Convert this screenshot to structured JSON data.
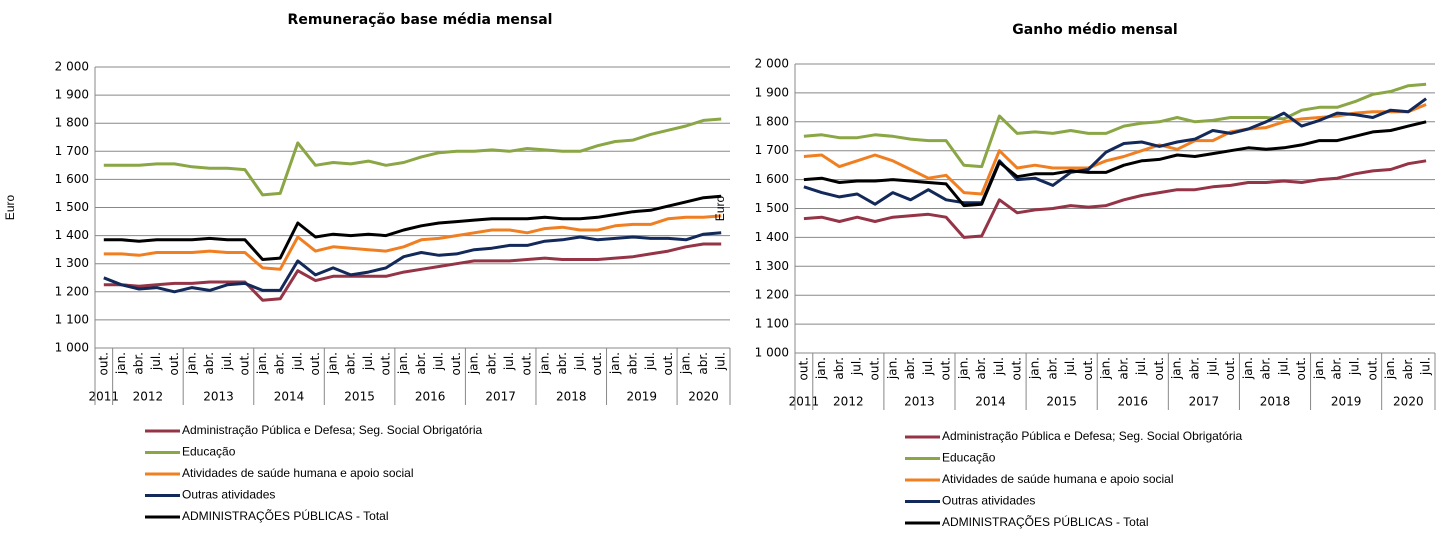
{
  "chart_data": [
    {
      "type": "line",
      "title": "Remuneração base média mensal",
      "y_label": "Euro",
      "categories": [
        "out.",
        "jan.",
        "abr.",
        "jul.",
        "out.",
        "jan.",
        "abr.",
        "jul.",
        "out.",
        "jan.",
        "abr.",
        "jul.",
        "out.",
        "jan.",
        "abr.",
        "jul.",
        "out.",
        "jan.",
        "abr.",
        "jul.",
        "out.",
        "jan.",
        "abr.",
        "jul.",
        "out.",
        "jan.",
        "abr.",
        "jul.",
        "out.",
        "jan.",
        "abr.",
        "jul.",
        "out.",
        "jan.",
        "abr.",
        "jul."
      ],
      "years": [
        "2011",
        "2012",
        "2013",
        "2014",
        "2015",
        "2016",
        "2017",
        "2018",
        "2019",
        "2020"
      ],
      "ylim": [
        1000,
        2000
      ],
      "yticks": [
        {
          "value": 1000,
          "label": "1 000"
        },
        {
          "value": 1100,
          "label": "1 100"
        },
        {
          "value": 1200,
          "label": "1 200"
        },
        {
          "value": 1300,
          "label": "1 300"
        },
        {
          "value": 1400,
          "label": "1 400"
        },
        {
          "value": 1500,
          "label": "1 500"
        },
        {
          "value": 1600,
          "label": "1 600"
        },
        {
          "value": 1700,
          "label": "1 700"
        },
        {
          "value": 1800,
          "label": "1 800"
        },
        {
          "value": 1900,
          "label": "1 900"
        },
        {
          "value": 2000,
          "label": "2 000"
        }
      ],
      "grid": true,
      "series": [
        {
          "name": "Administração Pública e Defesa; Seg. Social Obrigatória",
          "color": "#953446",
          "values": [
            1225,
            1225,
            1220,
            1225,
            1230,
            1230,
            1235,
            1235,
            1235,
            1170,
            1175,
            1275,
            1240,
            1255,
            1255,
            1255,
            1255,
            1270,
            1280,
            1290,
            1300,
            1310,
            1310,
            1310,
            1315,
            1320,
            1315,
            1315,
            1315,
            1320,
            1325,
            1335,
            1345,
            1360,
            1370,
            1370
          ]
        },
        {
          "name": "Educação",
          "color": "#8aa645",
          "values": [
            1650,
            1650,
            1650,
            1655,
            1655,
            1645,
            1640,
            1640,
            1635,
            1545,
            1550,
            1730,
            1650,
            1660,
            1655,
            1665,
            1650,
            1660,
            1680,
            1695,
            1700,
            1700,
            1705,
            1700,
            1710,
            1705,
            1700,
            1700,
            1720,
            1735,
            1740,
            1760,
            1775,
            1790,
            1810,
            1815
          ]
        },
        {
          "name": "Atividades de saúde humana e apoio social",
          "color": "#f07f22",
          "values": [
            1335,
            1335,
            1330,
            1340,
            1340,
            1340,
            1345,
            1340,
            1340,
            1285,
            1280,
            1395,
            1345,
            1360,
            1355,
            1350,
            1345,
            1360,
            1385,
            1390,
            1400,
            1410,
            1420,
            1420,
            1410,
            1425,
            1430,
            1420,
            1420,
            1435,
            1440,
            1440,
            1460,
            1465,
            1465,
            1470
          ]
        },
        {
          "name": "Outras atividades",
          "color": "#13295a",
          "values": [
            1250,
            1225,
            1210,
            1215,
            1200,
            1215,
            1205,
            1225,
            1230,
            1205,
            1205,
            1310,
            1260,
            1285,
            1260,
            1270,
            1285,
            1325,
            1340,
            1330,
            1335,
            1350,
            1355,
            1365,
            1365,
            1380,
            1385,
            1395,
            1385,
            1390,
            1395,
            1390,
            1390,
            1385,
            1405,
            1410
          ]
        },
        {
          "name": "ADMINISTRAÇÕES PÚBLICAS - Total",
          "color": "#000000",
          "values": [
            1385,
            1385,
            1380,
            1385,
            1385,
            1385,
            1390,
            1385,
            1385,
            1315,
            1320,
            1445,
            1395,
            1405,
            1400,
            1405,
            1400,
            1420,
            1435,
            1445,
            1450,
            1455,
            1460,
            1460,
            1460,
            1465,
            1460,
            1460,
            1465,
            1475,
            1485,
            1490,
            1505,
            1520,
            1535,
            1540
          ]
        }
      ]
    },
    {
      "type": "line",
      "title": "Ganho médio mensal",
      "y_label": "Euro",
      "categories": [
        "out.",
        "jan.",
        "abr.",
        "jul.",
        "out.",
        "jan.",
        "abr.",
        "jul.",
        "out.",
        "jan.",
        "abr.",
        "jul.",
        "out.",
        "jan.",
        "abr.",
        "jul.",
        "out.",
        "jan.",
        "abr.",
        "jul.",
        "out.",
        "jan.",
        "abr.",
        "jul.",
        "out.",
        "jan.",
        "abr.",
        "jul.",
        "out.",
        "jan.",
        "abr.",
        "jul.",
        "out.",
        "jan.",
        "abr.",
        "jul."
      ],
      "years": [
        "2011",
        "2012",
        "2013",
        "2014",
        "2015",
        "2016",
        "2017",
        "2018",
        "2019",
        "2020"
      ],
      "ylim": [
        1000,
        2000
      ],
      "yticks": [
        {
          "value": 1000,
          "label": "1 000"
        },
        {
          "value": 1100,
          "label": "1 100"
        },
        {
          "value": 1200,
          "label": "1 200"
        },
        {
          "value": 1300,
          "label": "1 300"
        },
        {
          "value": 1400,
          "label": "1 400"
        },
        {
          "value": 1500,
          "label": "1 500"
        },
        {
          "value": 1600,
          "label": "1 600"
        },
        {
          "value": 1700,
          "label": "1 700"
        },
        {
          "value": 1800,
          "label": "1 800"
        },
        {
          "value": 1900,
          "label": "1 900"
        },
        {
          "value": 2000,
          "label": "2 000"
        }
      ],
      "grid": true,
      "series": [
        {
          "name": "Administração Pública e Defesa; Seg. Social Obrigatória",
          "color": "#953446",
          "values": [
            1465,
            1470,
            1455,
            1470,
            1455,
            1470,
            1475,
            1480,
            1470,
            1400,
            1405,
            1530,
            1485,
            1495,
            1500,
            1510,
            1505,
            1510,
            1530,
            1545,
            1555,
            1565,
            1565,
            1575,
            1580,
            1590,
            1590,
            1595,
            1590,
            1600,
            1605,
            1620,
            1630,
            1635,
            1655,
            1665
          ]
        },
        {
          "name": "Educação",
          "color": "#8aa645",
          "values": [
            1750,
            1755,
            1745,
            1745,
            1755,
            1750,
            1740,
            1735,
            1735,
            1650,
            1645,
            1820,
            1760,
            1765,
            1760,
            1770,
            1760,
            1760,
            1785,
            1795,
            1800,
            1815,
            1800,
            1805,
            1815,
            1815,
            1815,
            1810,
            1840,
            1850,
            1850,
            1870,
            1895,
            1905,
            1925,
            1930
          ]
        },
        {
          "name": "Atividades de saúde humana e apoio social",
          "color": "#f07f22",
          "values": [
            1680,
            1685,
            1645,
            1665,
            1685,
            1665,
            1635,
            1605,
            1615,
            1555,
            1550,
            1700,
            1640,
            1650,
            1640,
            1640,
            1640,
            1665,
            1680,
            1700,
            1720,
            1705,
            1735,
            1735,
            1765,
            1775,
            1780,
            1800,
            1810,
            1815,
            1820,
            1830,
            1835,
            1835,
            1835,
            1860
          ]
        },
        {
          "name": "Outras atividades",
          "color": "#13295a",
          "values": [
            1575,
            1555,
            1540,
            1550,
            1515,
            1555,
            1530,
            1565,
            1530,
            1520,
            1520,
            1665,
            1600,
            1605,
            1580,
            1625,
            1635,
            1695,
            1725,
            1730,
            1715,
            1730,
            1740,
            1770,
            1760,
            1775,
            1800,
            1830,
            1785,
            1805,
            1830,
            1825,
            1815,
            1840,
            1835,
            1880
          ]
        },
        {
          "name": "ADMINISTRAÇÕES PÚBLICAS - Total",
          "color": "#000000",
          "values": [
            1600,
            1605,
            1590,
            1595,
            1595,
            1600,
            1595,
            1590,
            1585,
            1510,
            1515,
            1660,
            1610,
            1620,
            1620,
            1630,
            1625,
            1625,
            1650,
            1665,
            1670,
            1685,
            1680,
            1690,
            1700,
            1710,
            1705,
            1710,
            1720,
            1735,
            1735,
            1750,
            1765,
            1770,
            1785,
            1800
          ]
        }
      ]
    }
  ]
}
